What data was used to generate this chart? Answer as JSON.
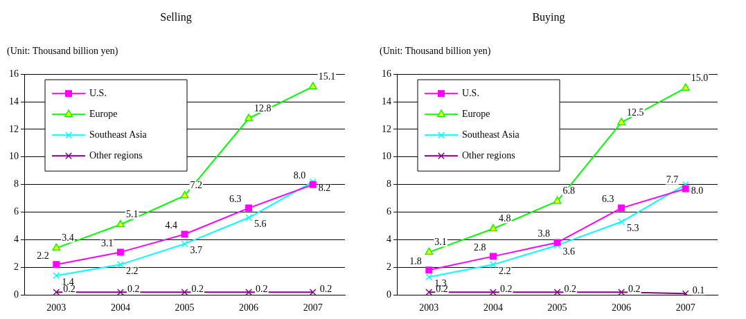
{
  "chart_data": [
    {
      "type": "line",
      "title": "Selling",
      "annotations": [
        "(Unit: Thousand billion yen)"
      ],
      "categories": [
        "2003",
        "2004",
        "2005",
        "2006",
        "2007"
      ],
      "ylim": [
        0,
        16
      ],
      "yticks": [
        0,
        2,
        4,
        6,
        8,
        10,
        12,
        14,
        16
      ],
      "grid": "y",
      "legend": "top left",
      "line_style": "solid",
      "series": [
        {
          "name": "U.S.",
          "color": "#ff00ff",
          "marker": "square",
          "values": [
            2.2,
            3.1,
            4.4,
            6.3,
            8.0
          ],
          "value_labels": [
            "2.2",
            "3.1",
            "4.4",
            "6.3",
            "8.0"
          ]
        },
        {
          "name": "Europe",
          "color": "#00ff00",
          "marker": "triangle",
          "values": [
            3.4,
            5.1,
            7.2,
            12.8,
            15.1
          ],
          "value_labels": [
            "3.4",
            "5.1",
            "7.2",
            "12.8",
            "15.1"
          ]
        },
        {
          "name": "Southeast Asia",
          "color": "#00ffff",
          "marker": "cross",
          "values": [
            1.4,
            2.2,
            3.7,
            5.6,
            8.2
          ],
          "value_labels": [
            "1.4",
            "2.2",
            "3.7",
            "5.6",
            "8.2"
          ]
        },
        {
          "name": "Other regions",
          "color": "#800080",
          "marker": "cross",
          "values": [
            0.2,
            0.2,
            0.2,
            0.2,
            0.2
          ],
          "value_labels": [
            "0.2",
            "0.2",
            "0.2",
            "0.2",
            "0.2"
          ]
        }
      ]
    },
    {
      "type": "line",
      "title": "Buying",
      "annotations": [
        "(Unit: Thousand billion yen)"
      ],
      "categories": [
        "2003",
        "2004",
        "2005",
        "2006",
        "2007"
      ],
      "ylim": [
        0,
        16
      ],
      "yticks": [
        0,
        2,
        4,
        6,
        8,
        10,
        12,
        14,
        16
      ],
      "grid": "y",
      "legend": "top left",
      "line_style": "solid",
      "series": [
        {
          "name": "U.S.",
          "color": "#ff00ff",
          "marker": "square",
          "values": [
            1.8,
            2.8,
            3.8,
            6.3,
            7.7
          ],
          "value_labels": [
            "1.8",
            "2.8",
            "3.8",
            "6.3",
            "7.7"
          ]
        },
        {
          "name": "Europe",
          "color": "#00ff00",
          "marker": "triangle",
          "values": [
            3.1,
            4.8,
            6.8,
            12.5,
            15.0
          ],
          "value_labels": [
            "3.1",
            "4.8",
            "6.8",
            "12.5",
            "15.0"
          ]
        },
        {
          "name": "Southeast Asia",
          "color": "#00ffff",
          "marker": "cross",
          "values": [
            1.3,
            2.2,
            3.6,
            5.3,
            8.0
          ],
          "value_labels": [
            "1.3",
            "2.2",
            "3.6",
            "5.3",
            "8.0"
          ]
        },
        {
          "name": "Other regions",
          "color": "#800080",
          "marker": "cross",
          "values": [
            0.2,
            0.2,
            0.2,
            0.2,
            0.1
          ],
          "value_labels": [
            "0.2",
            "0.2",
            "0.2",
            "0.2",
            "0.1"
          ]
        }
      ]
    }
  ]
}
